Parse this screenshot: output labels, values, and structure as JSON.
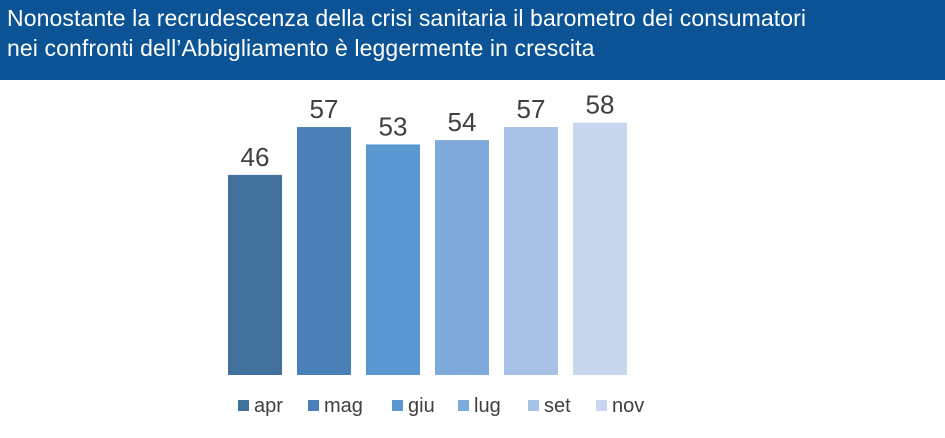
{
  "header": {
    "title_line1": "Nonostante la recrudescenza della crisi sanitaria il barometro dei consumatori",
    "title_line2": "nei confronti dell’Abbigliamento è leggermente in crescita"
  },
  "colors": {
    "header_bg": "#0b5394",
    "series": [
      "#41709d",
      "#4a7fb7",
      "#5b97d0",
      "#7ea9db",
      "#a7c2e5",
      "#c7d7ed"
    ]
  },
  "chart_data": {
    "type": "bar",
    "title": "",
    "xlabel": "",
    "ylabel": "",
    "ylim": [
      0,
      60
    ],
    "grid": false,
    "legend_position": "bottom",
    "series": [
      {
        "name": "apr",
        "values": [
          46
        ]
      },
      {
        "name": "mag",
        "values": [
          57
        ]
      },
      {
        "name": "giu",
        "values": [
          53
        ]
      },
      {
        "name": "lug",
        "values": [
          54
        ]
      },
      {
        "name": "set",
        "values": [
          57
        ]
      },
      {
        "name": "nov",
        "values": [
          58
        ]
      }
    ]
  }
}
